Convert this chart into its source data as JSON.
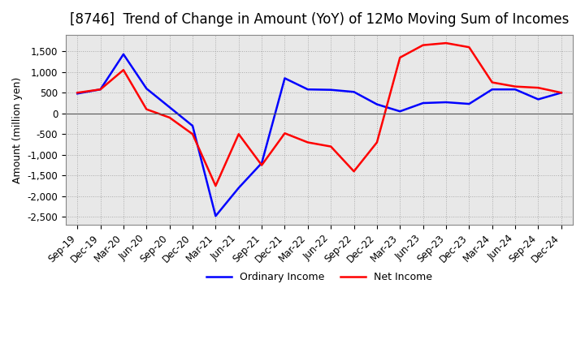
{
  "title": "[8746]  Trend of Change in Amount (YoY) of 12Mo Moving Sum of Incomes",
  "ylabel": "Amount (million yen)",
  "x_labels": [
    "Sep-19",
    "Dec-19",
    "Mar-20",
    "Jun-20",
    "Sep-20",
    "Dec-20",
    "Mar-21",
    "Jun-21",
    "Sep-21",
    "Dec-21",
    "Mar-22",
    "Jun-22",
    "Sep-22",
    "Dec-22",
    "Mar-23",
    "Jun-23",
    "Sep-23",
    "Dec-23",
    "Mar-24",
    "Jun-24",
    "Sep-24",
    "Dec-24"
  ],
  "ordinary_income": [
    480,
    580,
    1430,
    600,
    150,
    -300,
    -2480,
    -1800,
    -1200,
    850,
    580,
    570,
    520,
    220,
    50,
    250,
    270,
    230,
    580,
    580,
    340,
    500
  ],
  "net_income": [
    500,
    580,
    1050,
    100,
    -100,
    -500,
    -1750,
    -500,
    -1250,
    -480,
    -700,
    -800,
    -1400,
    -700,
    1350,
    1650,
    1700,
    1600,
    750,
    650,
    620,
    500
  ],
  "ordinary_income_color": "#0000ff",
  "net_income_color": "#ff0000",
  "ylim": [
    -2700,
    1900
  ],
  "yticks": [
    -2500,
    -2000,
    -1500,
    -1000,
    -500,
    0,
    500,
    1000,
    1500
  ],
  "background_color": "#ffffff",
  "plot_bg_color": "#e8e8e8",
  "grid_color": "#aaaaaa",
  "title_fontsize": 12,
  "axis_fontsize": 9,
  "tick_fontsize": 8.5,
  "line_width": 1.8
}
